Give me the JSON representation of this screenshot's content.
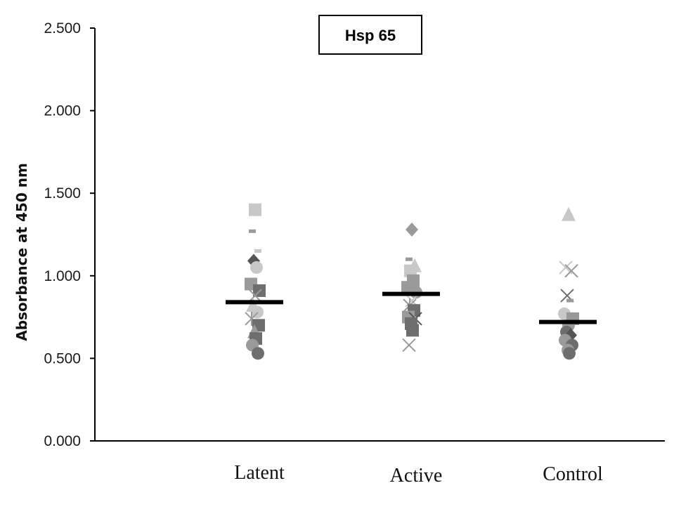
{
  "chart_data": {
    "type": "scatter",
    "title": "Hsp 65",
    "xlabel": "",
    "ylabel": "Absorbance at 450 nm",
    "categories": [
      "Latent",
      "Active",
      "Control"
    ],
    "ylim": [
      0,
      2.5
    ],
    "yticks": [
      "0.000",
      "0.500",
      "1.000",
      "1.500",
      "2.000",
      "2.500"
    ],
    "ytick_values": [
      0,
      0.5,
      1.0,
      1.5,
      2.0,
      2.5
    ],
    "grid": false,
    "legend": "none",
    "colors": {
      "axis": "#000000",
      "mean_line": "#000000",
      "light": "#c8c8c8",
      "mid": "#9a9a9a",
      "dark": "#6e6e6e",
      "darker": "#555555"
    },
    "series": [
      {
        "category": "Latent",
        "mean": 0.84,
        "points": [
          {
            "y": 1.4,
            "marker": "square",
            "shade": "light"
          },
          {
            "y": 1.27,
            "marker": "dash",
            "shade": "mid"
          },
          {
            "y": 1.15,
            "marker": "dash",
            "shade": "light"
          },
          {
            "y": 1.09,
            "marker": "diamond",
            "shade": "darker"
          },
          {
            "y": 1.05,
            "marker": "circle",
            "shade": "light"
          },
          {
            "y": 0.95,
            "marker": "square",
            "shade": "mid"
          },
          {
            "y": 0.91,
            "marker": "square",
            "shade": "dark"
          },
          {
            "y": 0.88,
            "marker": "x",
            "shade": "mid"
          },
          {
            "y": 0.82,
            "marker": "triangle",
            "shade": "light"
          },
          {
            "y": 0.78,
            "marker": "circle",
            "shade": "light"
          },
          {
            "y": 0.74,
            "marker": "star",
            "shade": "mid"
          },
          {
            "y": 0.7,
            "marker": "square",
            "shade": "dark"
          },
          {
            "y": 0.66,
            "marker": "triangle",
            "shade": "mid"
          },
          {
            "y": 0.62,
            "marker": "square",
            "shade": "dark"
          },
          {
            "y": 0.58,
            "marker": "circle",
            "shade": "mid"
          },
          {
            "y": 0.53,
            "marker": "circle",
            "shade": "dark"
          }
        ]
      },
      {
        "category": "Active",
        "mean": 0.89,
        "points": [
          {
            "y": 1.28,
            "marker": "diamond",
            "shade": "mid"
          },
          {
            "y": 1.1,
            "marker": "dash",
            "shade": "mid"
          },
          {
            "y": 1.06,
            "marker": "triangle",
            "shade": "light"
          },
          {
            "y": 1.03,
            "marker": "square",
            "shade": "light"
          },
          {
            "y": 0.97,
            "marker": "square",
            "shade": "mid"
          },
          {
            "y": 0.93,
            "marker": "square",
            "shade": "mid"
          },
          {
            "y": 0.9,
            "marker": "circle",
            "shade": "mid"
          },
          {
            "y": 0.85,
            "marker": "x",
            "shade": "light"
          },
          {
            "y": 0.82,
            "marker": "star",
            "shade": "mid"
          },
          {
            "y": 0.79,
            "marker": "square",
            "shade": "dark"
          },
          {
            "y": 0.75,
            "marker": "square",
            "shade": "mid"
          },
          {
            "y": 0.74,
            "marker": "x",
            "shade": "darker"
          },
          {
            "y": 0.71,
            "marker": "square",
            "shade": "dark"
          },
          {
            "y": 0.67,
            "marker": "square",
            "shade": "dark"
          },
          {
            "y": 0.58,
            "marker": "x",
            "shade": "mid"
          }
        ]
      },
      {
        "category": "Control",
        "mean": 0.72,
        "points": [
          {
            "y": 1.37,
            "marker": "triangle",
            "shade": "light"
          },
          {
            "y": 1.05,
            "marker": "x",
            "shade": "light"
          },
          {
            "y": 1.03,
            "marker": "x",
            "shade": "mid"
          },
          {
            "y": 0.88,
            "marker": "x",
            "shade": "dark"
          },
          {
            "y": 0.85,
            "marker": "dash",
            "shade": "mid"
          },
          {
            "y": 0.77,
            "marker": "circle",
            "shade": "light"
          },
          {
            "y": 0.74,
            "marker": "square",
            "shade": "mid"
          },
          {
            "y": 0.7,
            "marker": "circle",
            "shade": "mid"
          },
          {
            "y": 0.66,
            "marker": "circle",
            "shade": "dark"
          },
          {
            "y": 0.64,
            "marker": "diamond",
            "shade": "darker"
          },
          {
            "y": 0.61,
            "marker": "circle",
            "shade": "mid"
          },
          {
            "y": 0.58,
            "marker": "circle",
            "shade": "dark"
          },
          {
            "y": 0.55,
            "marker": "circle",
            "shade": "mid"
          },
          {
            "y": 0.53,
            "marker": "circle",
            "shade": "dark"
          }
        ]
      }
    ]
  }
}
